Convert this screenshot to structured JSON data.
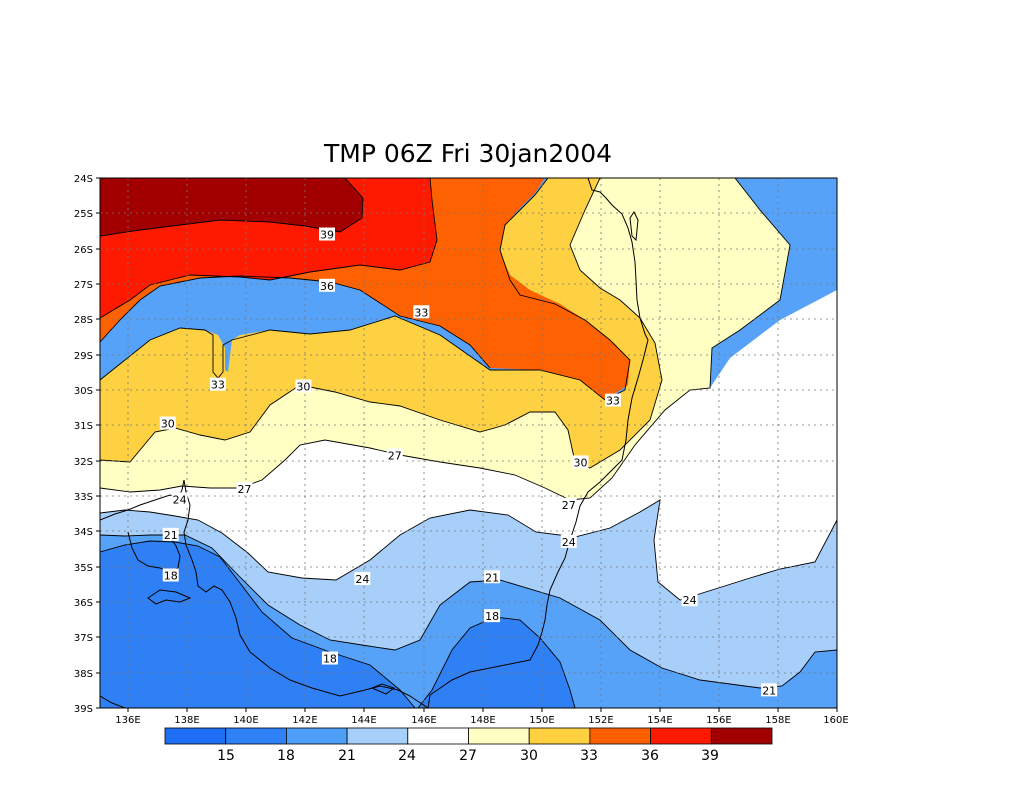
{
  "title": "TMP 06Z Fri 30jan2004",
  "map": {
    "lat_labels": [
      "24S",
      "25S",
      "26S",
      "27S",
      "28S",
      "29S",
      "30S",
      "31S",
      "32S",
      "33S",
      "34S",
      "35S",
      "36S",
      "37S",
      "38S",
      "39S"
    ],
    "lon_labels": [
      "136E",
      "138E",
      "140E",
      "142E",
      "144E",
      "146E",
      "148E",
      "150E",
      "152E",
      "154E",
      "156E",
      "158E",
      "160E"
    ],
    "lat_range": [
      -24,
      -39
    ],
    "lon_range": [
      135,
      160
    ],
    "contour_labels": [
      {
        "text": "39",
        "lon": 142.7,
        "lat": -25.6
      },
      {
        "text": "36",
        "lon": 142.7,
        "lat": -27.05
      },
      {
        "text": "33",
        "lon": 145.9,
        "lat": -27.8
      },
      {
        "text": "33",
        "lon": 139.0,
        "lat": -29.85
      },
      {
        "text": "33",
        "lon": 152.4,
        "lat": -30.3
      },
      {
        "text": "30",
        "lon": 141.9,
        "lat": -29.9
      },
      {
        "text": "30",
        "lon": 137.3,
        "lat": -30.95
      },
      {
        "text": "30",
        "lon": 151.3,
        "lat": -32.05
      },
      {
        "text": "27",
        "lon": 145.0,
        "lat": -31.85
      },
      {
        "text": "27",
        "lon": 139.9,
        "lat": -32.8
      },
      {
        "text": "27",
        "lon": 150.9,
        "lat": -33.25
      },
      {
        "text": "24",
        "lon": 137.7,
        "lat": -33.1
      },
      {
        "text": "24",
        "lon": 150.9,
        "lat": -34.3
      },
      {
        "text": "24",
        "lon": 143.9,
        "lat": -35.35
      },
      {
        "text": "24",
        "lon": 155.0,
        "lat": -35.95
      },
      {
        "text": "21",
        "lon": 137.4,
        "lat": -34.1
      },
      {
        "text": "21",
        "lon": 148.3,
        "lat": -35.3
      },
      {
        "text": "21",
        "lon": 157.7,
        "lat": -38.5
      },
      {
        "text": "18",
        "lon": 137.4,
        "lat": -35.25
      },
      {
        "text": "18",
        "lon": 148.3,
        "lat": -36.4
      },
      {
        "text": "18",
        "lon": 142.8,
        "lat": -37.6
      }
    ]
  },
  "colorbar": {
    "colors": [
      "#1e6ef5",
      "#2f82f5",
      "#4f9ef8",
      "#a6d0fb",
      "#ffffff",
      "#ffffc4",
      "#ffd040",
      "#fe6000",
      "#fe1a00",
      "#a20000"
    ],
    "labels": [
      "15",
      "18",
      "21",
      "24",
      "27",
      "30",
      "33",
      "36",
      "39"
    ]
  },
  "palette": {
    "t15_18": "#3080f5",
    "t18_21": "#56a2f9",
    "t21_24": "#a7cff9",
    "t24_27": "#ffffff",
    "t27_30": "#ffffc3",
    "t30_33": "#fed142",
    "t33_36": "#fe6101",
    "t36_39": "#fe1a00",
    "t39_plus": "#a20000",
    "coast": "#000000",
    "grid": "#777777"
  }
}
